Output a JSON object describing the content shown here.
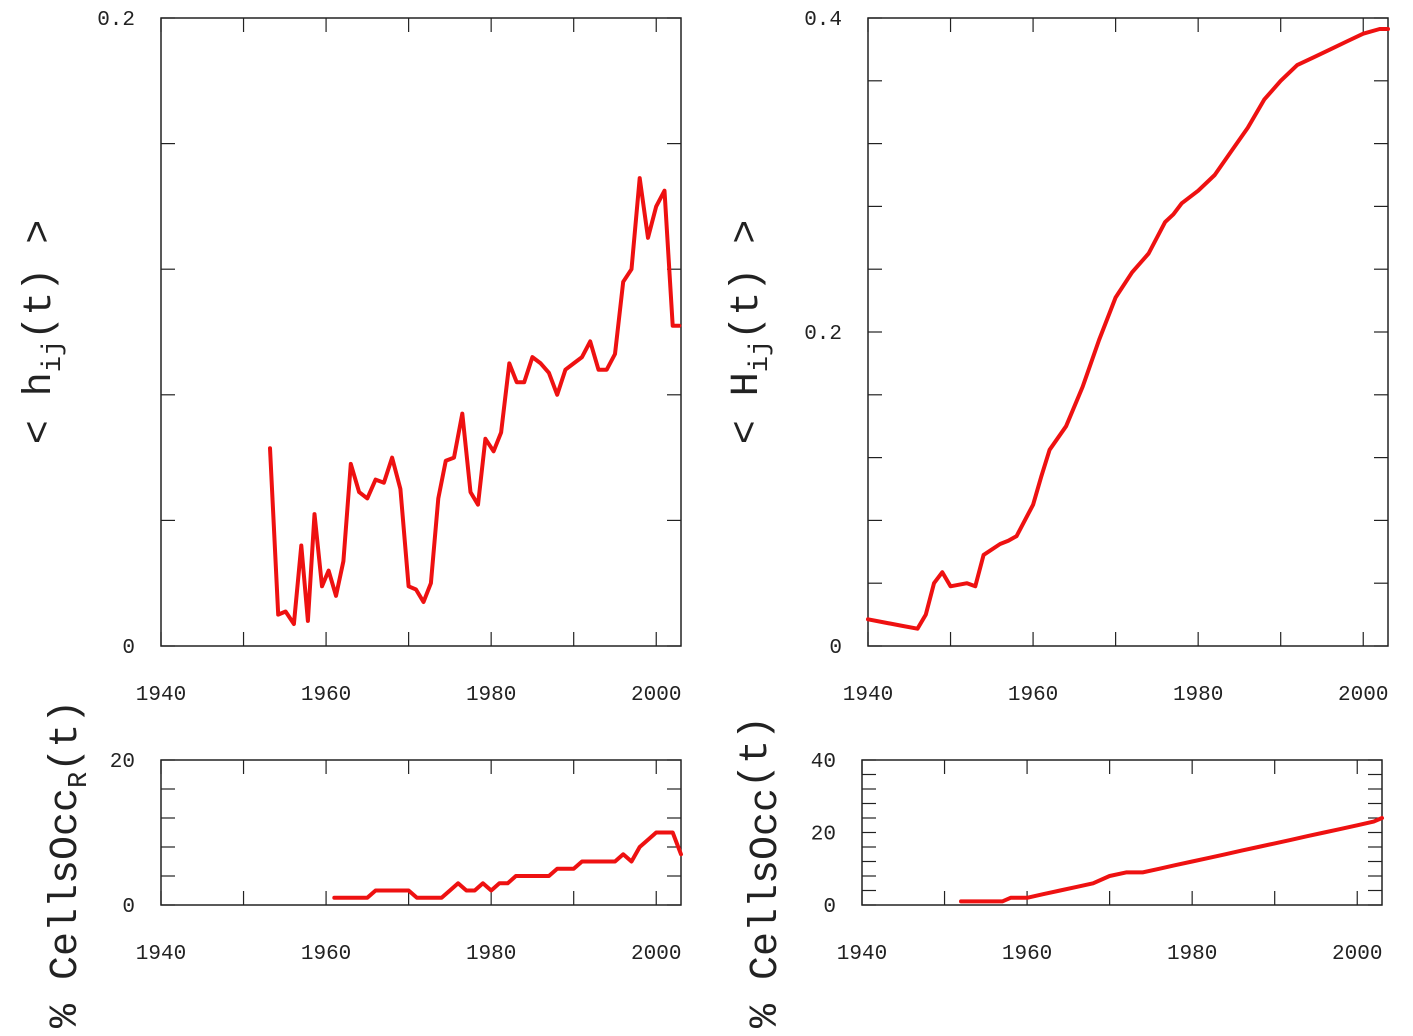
{
  "colors": {
    "series": "#ee1111",
    "axis": "#222222"
  },
  "chart_data": [
    {
      "id": "top-left",
      "type": "line",
      "ylabel_parts": [
        "< h",
        "ij",
        "(t) >"
      ],
      "xlim": [
        1940,
        2003
      ],
      "ylim": [
        0,
        0.2
      ],
      "xticks": [
        1940,
        1960,
        1980,
        2000
      ],
      "xtick_labels": [
        "1940",
        "1960",
        "1980",
        "2000"
      ],
      "yticks": [
        0,
        0.2
      ],
      "ytick_labels": [
        "0",
        "0.2"
      ],
      "minor_yticks": [
        0.04,
        0.08,
        0.12,
        0.16
      ],
      "minor_xticks": [
        1950,
        1970,
        1990
      ],
      "series": [
        {
          "x": [
            1953.2,
            1954.2,
            1955.1,
            1956.1,
            1957.0,
            1957.8,
            1958.6,
            1959.5,
            1960.3,
            1961.2,
            1962.1,
            1963.0,
            1964.0,
            1965.0,
            1966.0,
            1967.0,
            1968.0,
            1969.0,
            1970.0,
            1970.9,
            1971.8,
            1972.7,
            1973.6,
            1974.5,
            1975.5,
            1976.5,
            1977.5,
            1978.4,
            1979.3,
            1980.3,
            1981.2,
            1982.2,
            1983.1,
            1984.0,
            1985.0,
            1986.0,
            1987.0,
            1988.0,
            1989.0,
            1990.0,
            1991.0,
            1992.0,
            1993.0,
            1994.0,
            1995.0,
            1996.0,
            1997.0,
            1998.0,
            1999.0,
            2000.0,
            2001.0,
            2002.0,
            2002.8
          ],
          "y": [
            0.063,
            0.01,
            0.011,
            0.007,
            0.032,
            0.008,
            0.042,
            0.019,
            0.024,
            0.016,
            0.027,
            0.058,
            0.049,
            0.047,
            0.053,
            0.052,
            0.06,
            0.05,
            0.019,
            0.018,
            0.014,
            0.02,
            0.047,
            0.059,
            0.06,
            0.074,
            0.049,
            0.045,
            0.066,
            0.062,
            0.068,
            0.09,
            0.084,
            0.084,
            0.092,
            0.09,
            0.087,
            0.08,
            0.088,
            0.09,
            0.092,
            0.097,
            0.088,
            0.088,
            0.093,
            0.116,
            0.12,
            0.149,
            0.13,
            0.14,
            0.145,
            0.102,
            0.102
          ]
        }
      ]
    },
    {
      "id": "top-right",
      "type": "line",
      "ylabel_parts": [
        "< H",
        "ij",
        "(t) >"
      ],
      "xlim": [
        1940,
        2003
      ],
      "ylim": [
        0,
        0.4
      ],
      "xticks": [
        1940,
        1960,
        1980,
        2000
      ],
      "xtick_labels": [
        "1940",
        "1960",
        "1980",
        "2000"
      ],
      "yticks": [
        0,
        0.2,
        0.4
      ],
      "ytick_labels": [
        "0",
        "0.2",
        "0.4"
      ],
      "minor_yticks": [
        0.04,
        0.08,
        0.12,
        0.16,
        0.24,
        0.28,
        0.32,
        0.36
      ],
      "minor_xticks": [
        1950,
        1970,
        1990
      ],
      "series": [
        {
          "x": [
            1940,
            1942,
            1944,
            1946,
            1947,
            1948,
            1949,
            1950,
            1952,
            1953,
            1954,
            1956,
            1957,
            1958,
            1959,
            1960,
            1961,
            1962,
            1964,
            1966,
            1968,
            1970,
            1972,
            1974,
            1976,
            1977,
            1978,
            1980,
            1982,
            1984,
            1986,
            1988,
            1990,
            1992,
            1994,
            1996,
            1998,
            2000,
            2002,
            2003
          ],
          "y": [
            0.017,
            0.015,
            0.013,
            0.011,
            0.02,
            0.04,
            0.047,
            0.038,
            0.04,
            0.038,
            0.058,
            0.065,
            0.067,
            0.07,
            0.08,
            0.09,
            0.108,
            0.125,
            0.14,
            0.165,
            0.195,
            0.222,
            0.238,
            0.25,
            0.27,
            0.275,
            0.282,
            0.29,
            0.3,
            0.315,
            0.33,
            0.348,
            0.36,
            0.37,
            0.375,
            0.38,
            0.385,
            0.39,
            0.393,
            0.393
          ]
        }
      ]
    },
    {
      "id": "bottom-left",
      "type": "line",
      "ylabel_parts": [
        "% CellsOcc",
        "R",
        "(t)"
      ],
      "xlim": [
        1940,
        2003
      ],
      "ylim": [
        0,
        20
      ],
      "xticks": [
        1940,
        1960,
        1980,
        2000
      ],
      "xtick_labels": [
        "1940",
        "1960",
        "1980",
        "2000"
      ],
      "yticks": [
        0,
        20
      ],
      "ytick_labels": [
        "0",
        "20"
      ],
      "minor_yticks": [
        4,
        8,
        12,
        16
      ],
      "minor_xticks": [
        1950,
        1970,
        1990
      ],
      "series": [
        {
          "x": [
            1961,
            1962,
            1963,
            1964,
            1965,
            1966,
            1967,
            1968,
            1969,
            1970,
            1971,
            1972,
            1973,
            1974,
            1975,
            1976,
            1977,
            1978,
            1979,
            1980,
            1981,
            1982,
            1983,
            1984,
            1985,
            1986,
            1987,
            1988,
            1989,
            1990,
            1991,
            1992,
            1993,
            1994,
            1995,
            1996,
            1997,
            1998,
            1999,
            2000,
            2001,
            2002,
            2003
          ],
          "y": [
            1,
            1,
            1,
            1,
            1,
            2,
            2,
            2,
            2,
            2,
            1,
            1,
            1,
            1,
            2,
            3,
            2,
            2,
            3,
            2,
            3,
            3,
            4,
            4,
            4,
            4,
            4,
            5,
            5,
            5,
            6,
            6,
            6,
            6,
            6,
            7,
            6,
            8,
            9,
            10,
            10,
            10,
            7
          ]
        }
      ]
    },
    {
      "id": "bottom-right",
      "type": "line",
      "ylabel_parts": [
        "% CellsOcc",
        "",
        "(t)"
      ],
      "xlim": [
        1940,
        2003
      ],
      "ylim": [
        0,
        40
      ],
      "xticks": [
        1940,
        1960,
        1980,
        2000
      ],
      "xtick_labels": [
        "1940",
        "1960",
        "1980",
        "2000"
      ],
      "yticks": [
        0,
        20,
        40
      ],
      "ytick_labels": [
        "0",
        "20",
        "40"
      ],
      "minor_yticks": [
        4,
        8,
        12,
        16,
        24,
        28,
        32,
        36
      ],
      "minor_xticks": [
        1950,
        1970,
        1990
      ],
      "series": [
        {
          "x": [
            1952,
            1954,
            1956,
            1957,
            1958,
            1960,
            1962,
            1964,
            1966,
            1968,
            1970,
            1972,
            1974,
            1976,
            1978,
            1980,
            1982,
            1984,
            1986,
            1988,
            1990,
            1992,
            1994,
            1996,
            1998,
            2000,
            2002,
            2003
          ],
          "y": [
            1,
            1,
            1,
            1,
            2,
            2,
            3,
            4,
            5,
            6,
            8,
            9,
            9,
            10,
            11,
            12,
            13,
            14,
            15,
            16,
            17,
            18,
            19,
            20,
            21,
            22,
            23,
            24
          ]
        }
      ]
    }
  ]
}
